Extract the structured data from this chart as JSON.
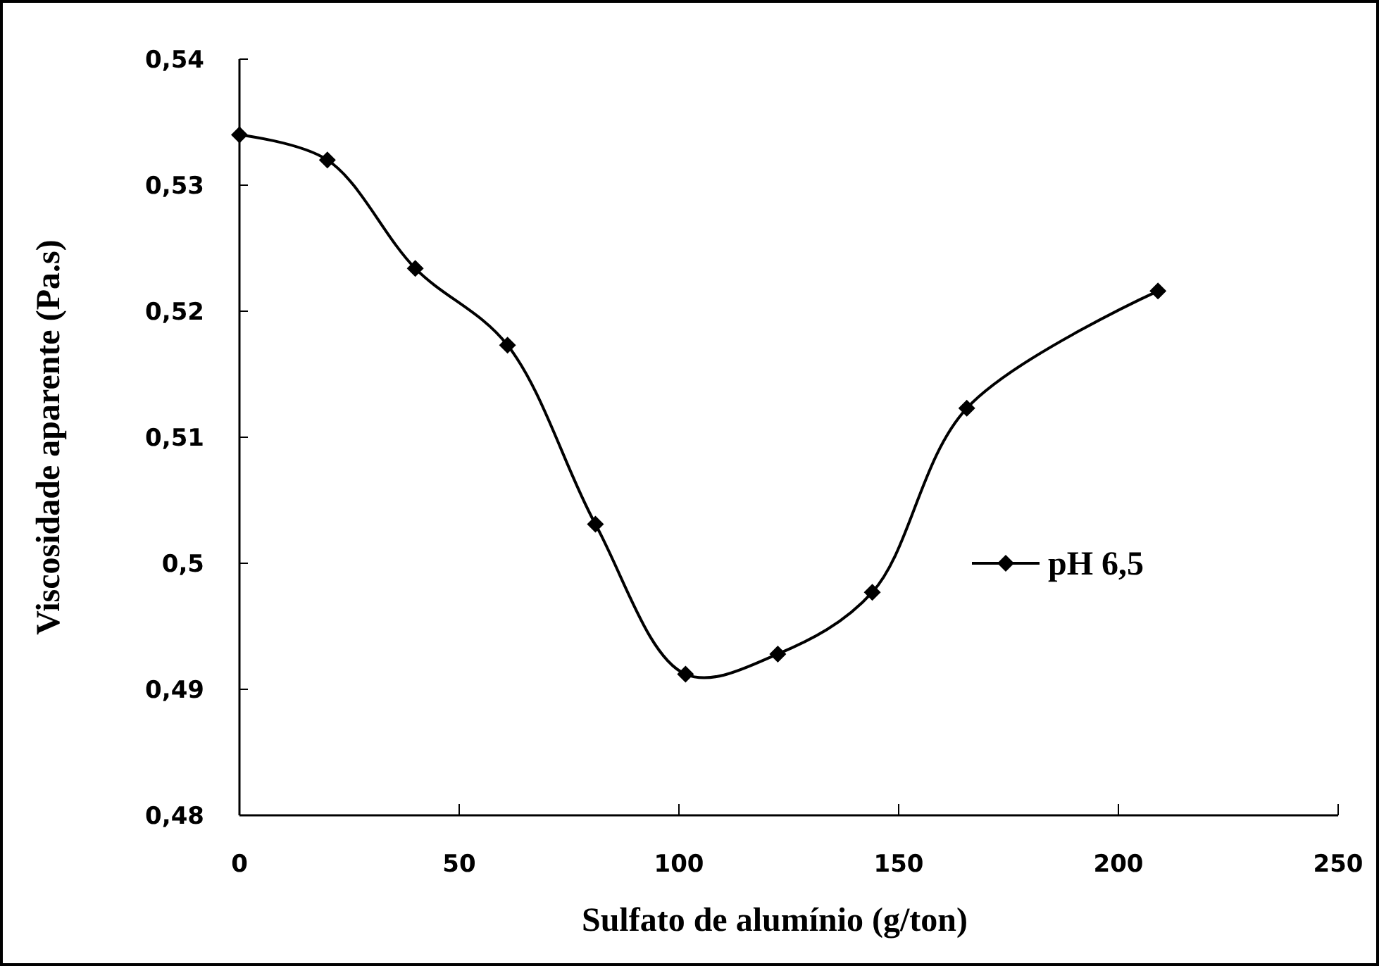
{
  "chart_data": {
    "type": "line",
    "xlabel": "Sulfato de alumínio (g/ton)",
    "ylabel": "Viscosidade aparente (Pa.s)",
    "xlim": [
      0,
      250
    ],
    "xticks": [
      0,
      50,
      100,
      150,
      200,
      250
    ],
    "ylim": [
      0.48,
      0.54
    ],
    "yticks": [
      {
        "value": 0.48,
        "label": "0,48"
      },
      {
        "value": 0.49,
        "label": "0,49"
      },
      {
        "value": 0.5,
        "label": "0,5"
      },
      {
        "value": 0.51,
        "label": "0,51"
      },
      {
        "value": 0.52,
        "label": "0,52"
      },
      {
        "value": 0.53,
        "label": "0,53"
      },
      {
        "value": 0.54,
        "label": "0,54"
      }
    ],
    "grid": false,
    "legend": "right",
    "marker": "diamond",
    "line_style": "solid",
    "series": [
      {
        "name": "pH 6,5",
        "color": "#000000",
        "x": [
          0,
          20,
          40,
          61,
          81,
          101.5,
          122.5,
          144,
          165.5,
          209
        ],
        "values": [
          0.534,
          0.532,
          0.5234,
          0.5173,
          0.5031,
          0.4912,
          0.4928,
          0.4977,
          0.5123,
          0.5216
        ]
      }
    ]
  }
}
